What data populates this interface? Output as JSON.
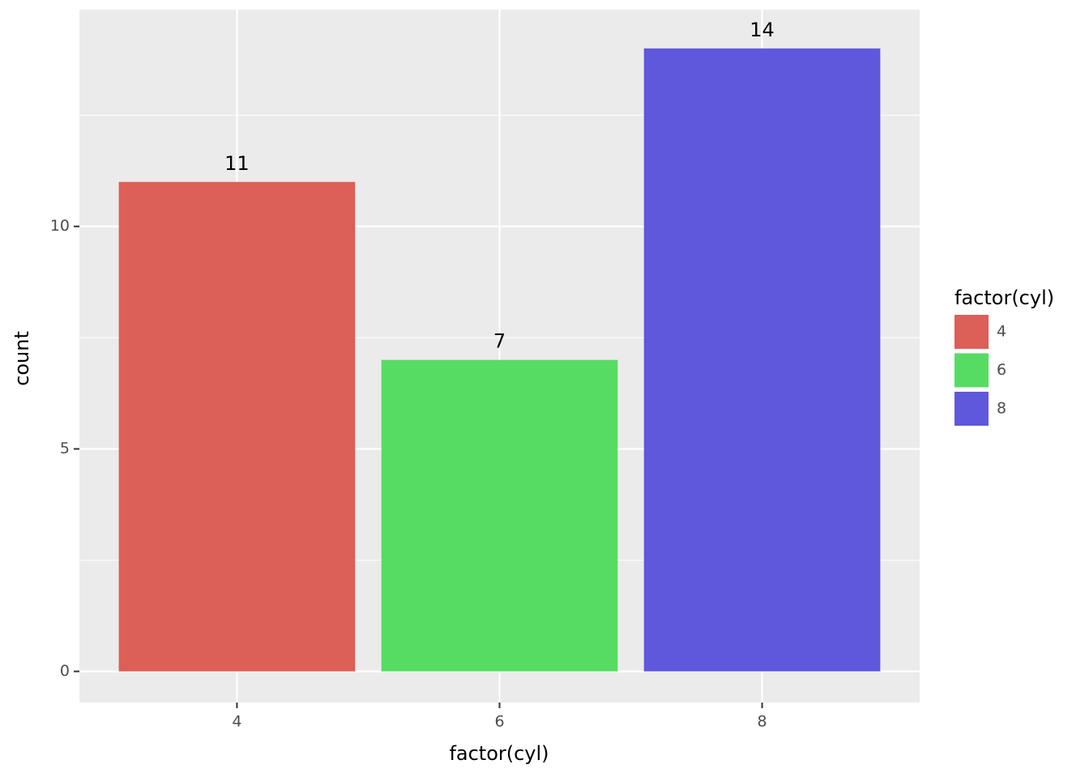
{
  "chart_data": {
    "type": "bar",
    "categories": [
      "4",
      "6",
      "8"
    ],
    "values": [
      11,
      7,
      14
    ],
    "colors": [
      "#dc5f58",
      "#56dc62",
      "#5f58dc"
    ],
    "xlabel": "factor(cyl)",
    "ylabel": "count",
    "ylim": [
      -0.7,
      14.87
    ],
    "yticks": [
      0,
      5,
      10
    ],
    "minor_yticks": [
      2.5,
      7.5,
      12.5
    ],
    "grid": true,
    "legend": {
      "title": "factor(cyl)",
      "position": "right"
    }
  }
}
